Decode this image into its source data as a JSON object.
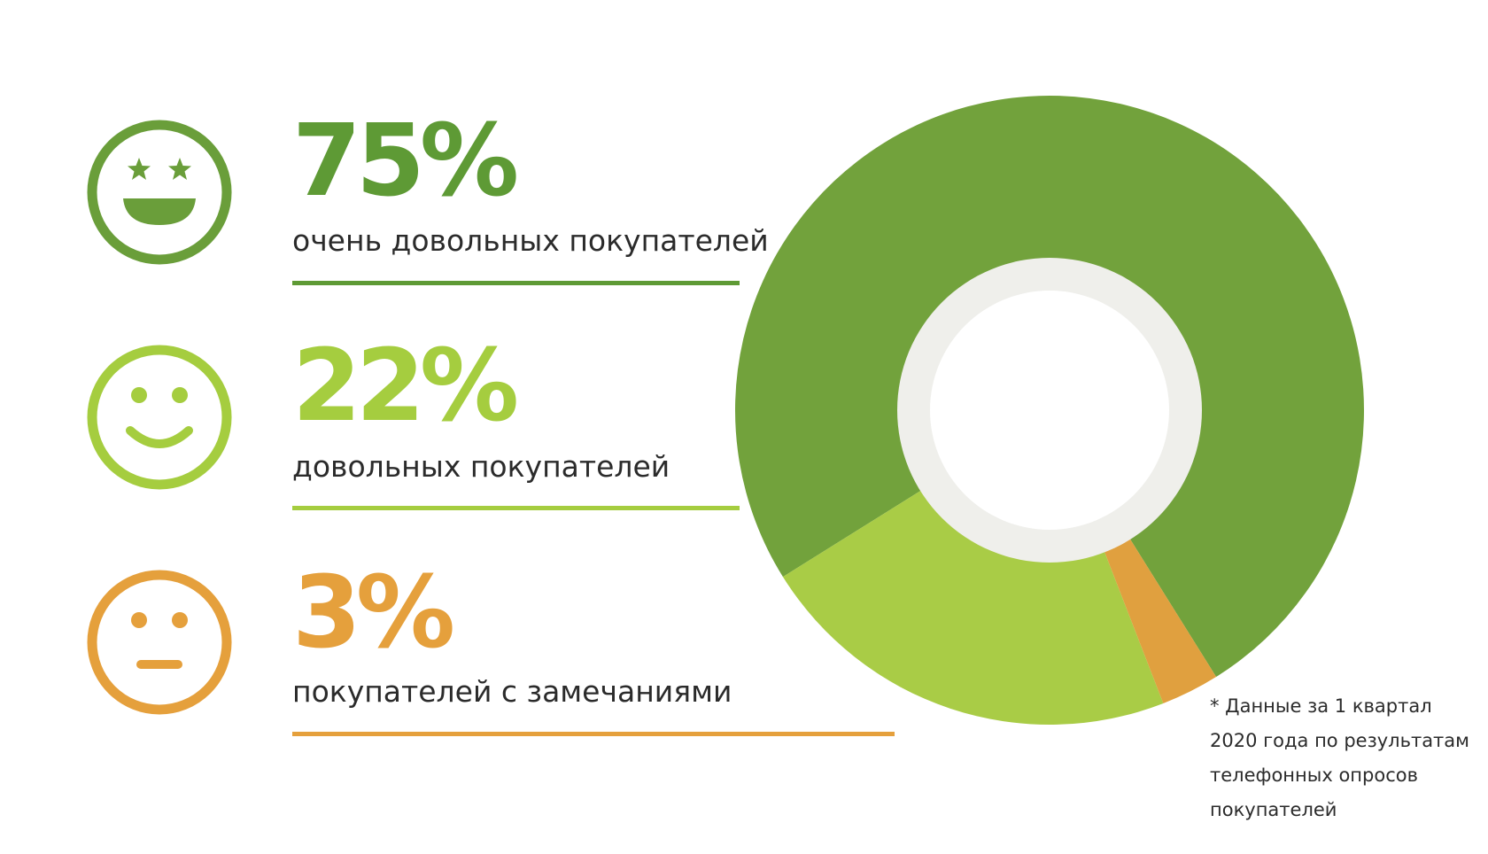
{
  "chart_data": {
    "type": "pie",
    "variant": "donut",
    "categories": [
      "очень довольных покупателей",
      "довольных покупателей",
      "покупателей с замечаниями"
    ],
    "values": [
      75,
      22,
      3
    ],
    "value_labels": [
      "75%",
      "22%",
      "3%"
    ],
    "colors": [
      "#72a23c",
      "#a9cc46",
      "#e0a03f"
    ],
    "title": "",
    "legend_placement": "left"
  },
  "items": [
    {
      "pct": "75%",
      "label": "очень довольных покупателей",
      "face": "star-eyes-grin-face-icon",
      "color": "#5e9a35"
    },
    {
      "pct": "22%",
      "label": "довольных покупателей",
      "face": "smile-face-icon",
      "color": "#a5cd3f"
    },
    {
      "pct": "3%",
      "label": "покупателей с замечаниями",
      "face": "neutral-face-icon",
      "color": "#e5a03c"
    }
  ],
  "footnote": "* Данные за 1 квартал 2020 года по результатам телефонных опросов покупателей",
  "colors": {
    "center_ring": "#efefeb",
    "center_fill": "#ffffff"
  }
}
